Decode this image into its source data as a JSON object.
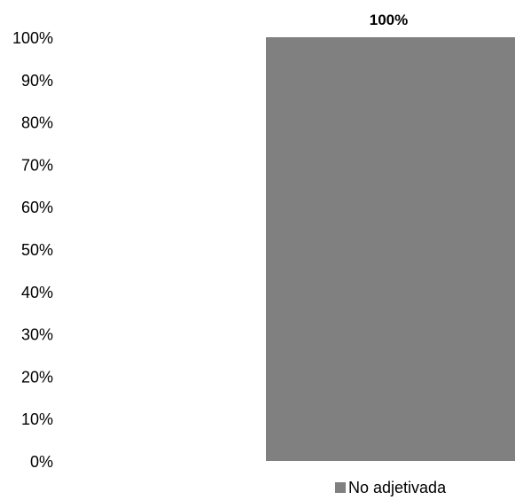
{
  "chart_data": {
    "type": "bar",
    "categories": [
      ""
    ],
    "series": [
      {
        "name": "No adjetivada",
        "values": [
          100
        ],
        "color": "#808080"
      }
    ],
    "data_labels": [
      "100%"
    ],
    "yticks": [
      "0%",
      "10%",
      "20%",
      "30%",
      "40%",
      "50%",
      "60%",
      "70%",
      "80%",
      "90%",
      "100%"
    ],
    "ylim": [
      0,
      100
    ],
    "grid": false,
    "legend_position": "bottom",
    "title": "",
    "xlabel": "",
    "ylabel": ""
  }
}
